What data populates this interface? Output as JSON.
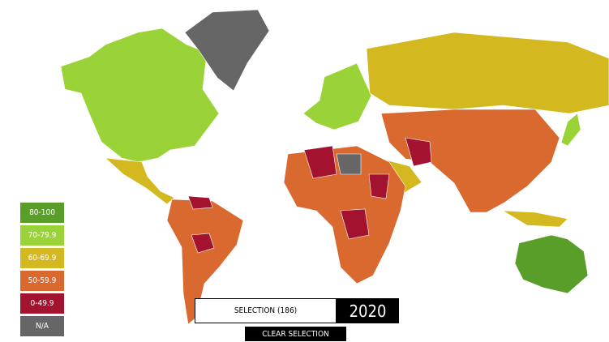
{
  "legend": [
    {
      "label": "80-100",
      "color": "#5a9e2a"
    },
    {
      "label": "70-79.9",
      "color": "#9ad338"
    },
    {
      "label": "60-69.9",
      "color": "#d4b81f"
    },
    {
      "label": "50-59.9",
      "color": "#d9692f"
    },
    {
      "label": "0-49.9",
      "color": "#a3122f"
    },
    {
      "label": "N/A",
      "color": "#666666"
    }
  ],
  "selection": {
    "label": "SELECTION (186)",
    "year": "2020",
    "clear_button": "CLEAR SELECTION"
  }
}
